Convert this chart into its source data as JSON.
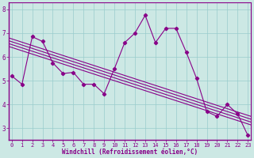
{
  "xlabel": "Windchill (Refroidissement éolien,°C)",
  "background_color": "#cce8e4",
  "line_color": "#880088",
  "grid_color": "#99cccc",
  "x": [
    0,
    1,
    2,
    3,
    4,
    5,
    6,
    7,
    8,
    9,
    10,
    11,
    12,
    13,
    14,
    15,
    16,
    17,
    18,
    19,
    20,
    21,
    22,
    23
  ],
  "y_main": [
    5.2,
    4.85,
    6.85,
    6.65,
    5.75,
    5.3,
    5.35,
    4.85,
    4.85,
    4.45,
    5.5,
    6.6,
    7.0,
    7.75,
    6.6,
    7.2,
    7.2,
    6.2,
    5.1,
    3.7,
    3.5,
    4.0,
    3.6,
    2.7
  ],
  "trend_y_start": 6.8,
  "trend_y_end": 3.5,
  "trend_offsets": [
    0.0,
    0.12,
    0.24,
    0.36
  ],
  "ylim": [
    2.5,
    8.3
  ],
  "xlim": [
    -0.3,
    23.3
  ],
  "yticks": [
    3,
    4,
    5,
    6,
    7,
    8
  ],
  "xticks": [
    0,
    1,
    2,
    3,
    4,
    5,
    6,
    7,
    8,
    9,
    10,
    11,
    12,
    13,
    14,
    15,
    16,
    17,
    18,
    19,
    20,
    21,
    22,
    23
  ],
  "figsize": [
    3.2,
    2.0
  ],
  "dpi": 100
}
